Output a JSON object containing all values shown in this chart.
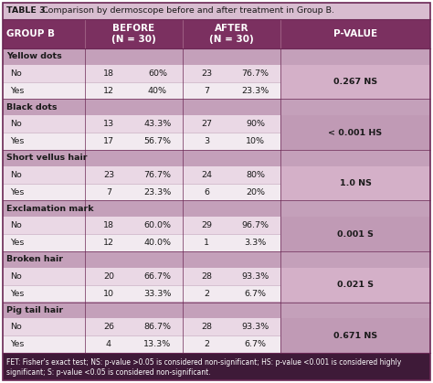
{
  "title_bold": "TABLE 3.",
  "title_rest": " Comparison by dermoscope before and after treatment in Group B.",
  "header_col": "GROUP B",
  "header_before": "BEFORE\n(N = 30)",
  "header_after": "AFTER\n(N = 30)",
  "header_pvalue": "P-VALUE",
  "sections": [
    {
      "name": "Yellow dots",
      "rows": [
        {
          "label": "No",
          "b_n": "18",
          "b_pct": "60%",
          "a_n": "23",
          "a_pct": "76.7%"
        },
        {
          "label": "Yes",
          "b_n": "12",
          "b_pct": "40%",
          "a_n": "7",
          "a_pct": "23.3%"
        }
      ],
      "pvalue": "0.267 NS"
    },
    {
      "name": "Black dots",
      "rows": [
        {
          "label": "No",
          "b_n": "13",
          "b_pct": "43.3%",
          "a_n": "27",
          "a_pct": "90%"
        },
        {
          "label": "Yes",
          "b_n": "17",
          "b_pct": "56.7%",
          "a_n": "3",
          "a_pct": "10%"
        }
      ],
      "pvalue": "< 0.001 HS"
    },
    {
      "name": "Short vellus hair",
      "rows": [
        {
          "label": "No",
          "b_n": "23",
          "b_pct": "76.7%",
          "a_n": "24",
          "a_pct": "80%"
        },
        {
          "label": "Yes",
          "b_n": "7",
          "b_pct": "23.3%",
          "a_n": "6",
          "a_pct": "20%"
        }
      ],
      "pvalue": "1.0 NS"
    },
    {
      "name": "Exclamation mark",
      "rows": [
        {
          "label": "No",
          "b_n": "18",
          "b_pct": "60.0%",
          "a_n": "29",
          "a_pct": "96.7%"
        },
        {
          "label": "Yes",
          "b_n": "12",
          "b_pct": "40.0%",
          "a_n": "1",
          "a_pct": "3.3%"
        }
      ],
      "pvalue": "0.001 S"
    },
    {
      "name": "Broken hair",
      "rows": [
        {
          "label": "No",
          "b_n": "20",
          "b_pct": "66.7%",
          "a_n": "28",
          "a_pct": "93.3%"
        },
        {
          "label": "Yes",
          "b_n": "10",
          "b_pct": "33.3%",
          "a_n": "2",
          "a_pct": "6.7%"
        }
      ],
      "pvalue": "0.021 S"
    },
    {
      "name": "Pig tail hair",
      "rows": [
        {
          "label": "No",
          "b_n": "26",
          "b_pct": "86.7%",
          "a_n": "28",
          "a_pct": "93.3%"
        },
        {
          "label": "Yes",
          "b_n": "4",
          "b_pct": "13.3%",
          "a_n": "2",
          "a_pct": "6.7%"
        }
      ],
      "pvalue": "0.671 NS"
    }
  ],
  "footnote_line1": "FET: Fisher's exact test; NS: p-value >0.05 is considered non-significant; HS: p-value <0.001 is considered highly",
  "footnote_line2": "significant; S: p-value <0.05 is considered non-significant.",
  "color_header": "#7B3060",
  "color_section": "#C4A0BA",
  "color_row_light": "#EAD8E5",
  "color_row_alt": "#F2EAF0",
  "color_pvalue_light": "#D4B0C8",
  "color_pvalue_dark": "#C09AB5",
  "color_title_bg": "#D8BDD0",
  "color_footer_bg": "#3E1A38",
  "color_border": "#6B2855",
  "color_white": "#FFFFFF",
  "color_black": "#000000"
}
